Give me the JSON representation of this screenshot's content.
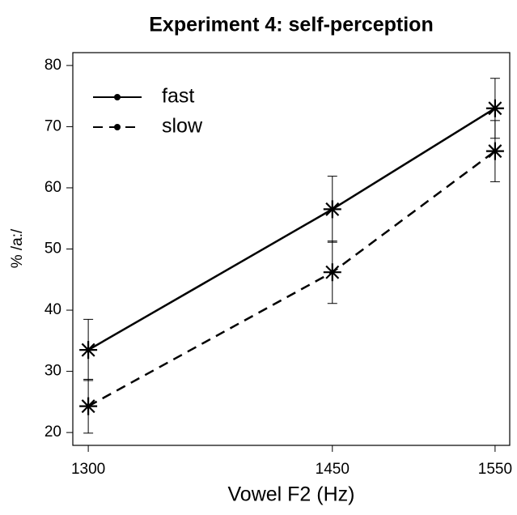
{
  "chart_data": {
    "type": "line",
    "title": "Experiment 4: self-perception",
    "x_label": "Vowel F2 (Hz)",
    "y_label": "% /a:/",
    "x": [
      1300,
      1450,
      1550
    ],
    "series": [
      {
        "name": "fast",
        "color": "#000000",
        "linestyle": "solid",
        "values": [
          33.5,
          56.5,
          73
        ],
        "errors": [
          5,
          5.4,
          4.9
        ]
      },
      {
        "name": "slow",
        "color": "#000000",
        "linestyle": "dashed",
        "values": [
          24.3,
          46.2,
          66
        ],
        "errors": [
          4.4,
          5.1,
          5
        ]
      }
    ],
    "xlim": [
      1290.5,
      1559
    ],
    "xticks": [
      1300,
      1450,
      1550
    ],
    "ylim": [
      17.9,
      82.1
    ],
    "yticks": [
      20,
      30,
      40,
      50,
      60,
      70,
      80
    ],
    "legend": "upper left",
    "grid": false
  }
}
